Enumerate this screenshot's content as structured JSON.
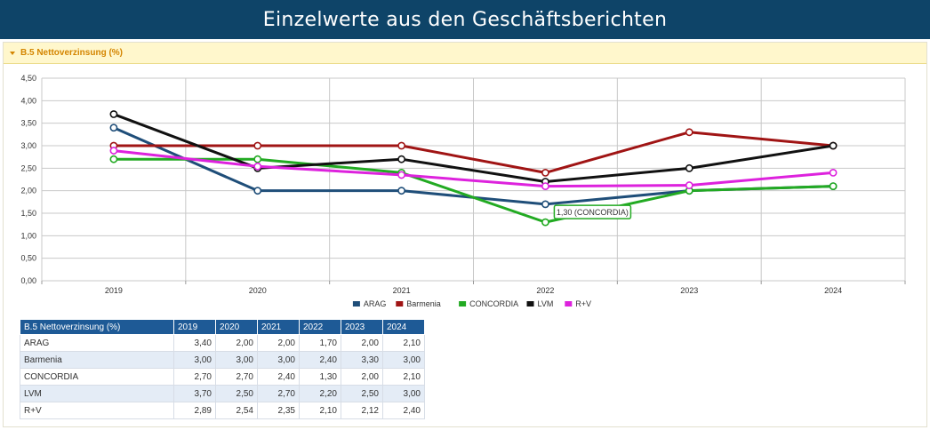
{
  "page": {
    "title": "Einzelwerte aus den Geschäftsberichten"
  },
  "panel": {
    "label": "B.5 Nettoverzinsung (%)"
  },
  "tooltip": {
    "text": "1,30 (CONCORDIA)",
    "series": "CONCORDIA",
    "category": "2022",
    "color": "#22aa22"
  },
  "chart_data": {
    "type": "line",
    "categories": [
      "2019",
      "2020",
      "2021",
      "2022",
      "2023",
      "2024"
    ],
    "ylim": [
      0,
      4.5
    ],
    "yticks": [
      "0,00",
      "0,50",
      "1,00",
      "1,50",
      "2,00",
      "2,50",
      "3,00",
      "3,50",
      "4,00",
      "4,50"
    ],
    "grid": true,
    "legend_position": "bottom-center",
    "series": [
      {
        "name": "ARAG",
        "color": "#1f4e79",
        "values": [
          3.4,
          2.0,
          2.0,
          1.7,
          2.0,
          2.1
        ]
      },
      {
        "name": "Barmenia",
        "color": "#a01414",
        "values": [
          3.0,
          3.0,
          3.0,
          2.4,
          3.3,
          3.0
        ]
      },
      {
        "name": "CONCORDIA",
        "color": "#22aa22",
        "values": [
          2.7,
          2.7,
          2.4,
          1.3,
          2.0,
          2.1
        ]
      },
      {
        "name": "LVM",
        "color": "#111111",
        "values": [
          3.7,
          2.5,
          2.7,
          2.2,
          2.5,
          3.0
        ]
      },
      {
        "name": "R+V",
        "color": "#dd22dd",
        "values": [
          2.89,
          2.54,
          2.35,
          2.1,
          2.12,
          2.4
        ]
      }
    ]
  },
  "table": {
    "header": [
      "B.5 Nettoverzinsung (%)",
      "2019",
      "2020",
      "2021",
      "2022",
      "2023",
      "2024"
    ],
    "rows": [
      {
        "name": "ARAG",
        "values": [
          "3,40",
          "2,00",
          "2,00",
          "1,70",
          "2,00",
          "2,10"
        ]
      },
      {
        "name": "Barmenia",
        "values": [
          "3,00",
          "3,00",
          "3,00",
          "2,40",
          "3,30",
          "3,00"
        ]
      },
      {
        "name": "CONCORDIA",
        "values": [
          "2,70",
          "2,70",
          "2,40",
          "1,30",
          "2,00",
          "2,10"
        ]
      },
      {
        "name": "LVM",
        "values": [
          "3,70",
          "2,50",
          "2,70",
          "2,20",
          "2,50",
          "3,00"
        ]
      },
      {
        "name": "R+V",
        "values": [
          "2,89",
          "2,54",
          "2,35",
          "2,10",
          "2,12",
          "2,40"
        ]
      }
    ]
  }
}
